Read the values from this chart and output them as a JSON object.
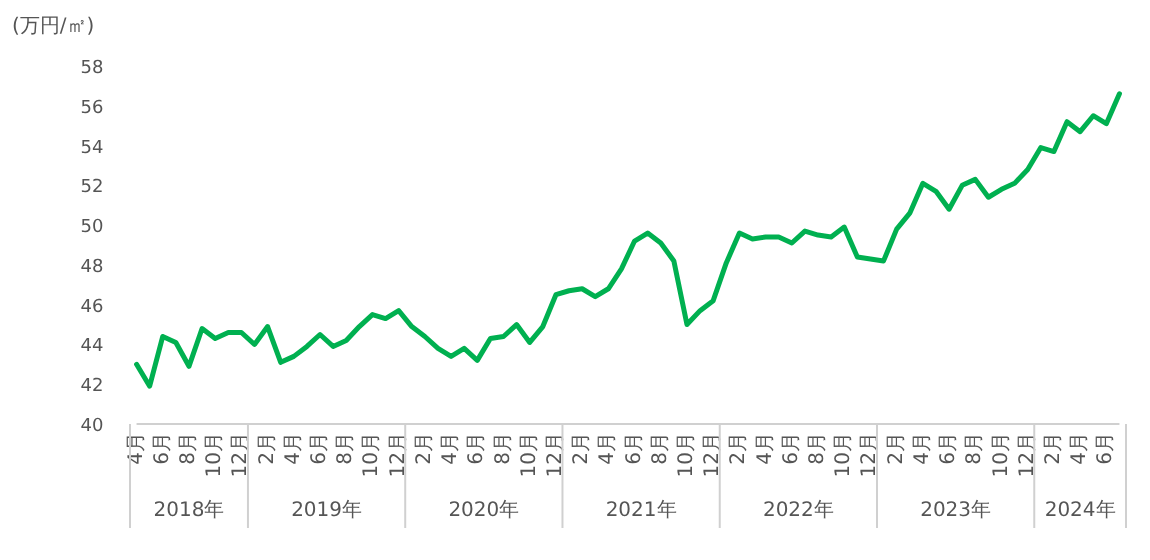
{
  "chart_data": {
    "type": "line",
    "ylabel": "(万円/㎡)",
    "x": [
      "2018-04",
      "2018-05",
      "2018-06",
      "2018-07",
      "2018-08",
      "2018-09",
      "2018-10",
      "2018-11",
      "2018-12",
      "2019-01",
      "2019-02",
      "2019-03",
      "2019-04",
      "2019-05",
      "2019-06",
      "2019-07",
      "2019-08",
      "2019-09",
      "2019-10",
      "2019-11",
      "2019-12",
      "2020-01",
      "2020-02",
      "2020-03",
      "2020-04",
      "2020-05",
      "2020-06",
      "2020-07",
      "2020-08",
      "2020-09",
      "2020-10",
      "2020-11",
      "2020-12",
      "2021-01",
      "2021-02",
      "2021-03",
      "2021-04",
      "2021-05",
      "2021-06",
      "2021-07",
      "2021-08",
      "2021-09",
      "2021-10",
      "2021-11",
      "2021-12",
      "2022-01",
      "2022-02",
      "2022-03",
      "2022-04",
      "2022-05",
      "2022-06",
      "2022-07",
      "2022-08",
      "2022-09",
      "2022-10",
      "2022-11",
      "2022-12",
      "2023-01",
      "2023-02",
      "2023-03",
      "2023-04",
      "2023-05",
      "2023-06",
      "2023-07",
      "2023-08",
      "2023-09",
      "2023-10",
      "2023-11",
      "2023-12",
      "2024-01",
      "2024-02",
      "2024-03",
      "2024-04",
      "2024-05",
      "2024-06",
      "2024-07"
    ],
    "series": [
      {
        "color": "#00b050",
        "values": [
          43.0,
          41.9,
          44.4,
          44.1,
          42.9,
          44.8,
          44.3,
          44.6,
          44.6,
          44.0,
          44.9,
          43.1,
          43.4,
          43.9,
          44.5,
          43.9,
          44.2,
          44.9,
          45.5,
          45.3,
          45.7,
          44.9,
          44.4,
          43.8,
          43.4,
          43.8,
          43.2,
          44.3,
          44.4,
          45.0,
          44.1,
          44.9,
          46.5,
          46.7,
          46.8,
          46.4,
          46.8,
          47.8,
          49.2,
          49.6,
          49.1,
          48.2,
          45.0,
          45.7,
          46.2,
          48.1,
          49.6,
          49.3,
          49.4,
          49.4,
          49.1,
          49.7,
          49.5,
          49.4,
          49.9,
          48.4,
          48.3,
          48.2,
          49.8,
          50.6,
          52.1,
          51.7,
          50.8,
          52.0,
          52.3,
          51.4,
          51.8,
          52.1,
          52.8,
          53.9,
          53.7,
          55.2,
          54.7,
          55.5,
          55.1,
          56.6
        ]
      }
    ],
    "xlim": [
      "2018-04",
      "2024-07"
    ],
    "xticks": [
      {
        "value": "2018-04",
        "label": "4月"
      },
      {
        "value": "2018-06",
        "label": "6月"
      },
      {
        "value": "2018-08",
        "label": "8月"
      },
      {
        "value": "2018-10",
        "label": "10月"
      },
      {
        "value": "2018-12",
        "label": "12月"
      },
      {
        "value": "2019-02",
        "label": "2月"
      },
      {
        "value": "2019-04",
        "label": "4月"
      },
      {
        "value": "2019-06",
        "label": "6月"
      },
      {
        "value": "2019-08",
        "label": "8月"
      },
      {
        "value": "2019-10",
        "label": "10月"
      },
      {
        "value": "2019-12",
        "label": "12月"
      },
      {
        "value": "2020-02",
        "label": "2月"
      },
      {
        "value": "2020-04",
        "label": "4月"
      },
      {
        "value": "2020-06",
        "label": "6月"
      },
      {
        "value": "2020-08",
        "label": "8月"
      },
      {
        "value": "2020-10",
        "label": "10月"
      },
      {
        "value": "2020-12",
        "label": "12月"
      },
      {
        "value": "2021-02",
        "label": "2月"
      },
      {
        "value": "2021-04",
        "label": "4月"
      },
      {
        "value": "2021-06",
        "label": "6月"
      },
      {
        "value": "2021-08",
        "label": "8月"
      },
      {
        "value": "2021-10",
        "label": "10月"
      },
      {
        "value": "2021-12",
        "label": "12月"
      },
      {
        "value": "2022-02",
        "label": "2月"
      },
      {
        "value": "2022-04",
        "label": "4月"
      },
      {
        "value": "2022-06",
        "label": "6月"
      },
      {
        "value": "2022-08",
        "label": "8月"
      },
      {
        "value": "2022-10",
        "label": "10月"
      },
      {
        "value": "2022-12",
        "label": "12月"
      },
      {
        "value": "2023-02",
        "label": "2月"
      },
      {
        "value": "2023-04",
        "label": "4月"
      },
      {
        "value": "2023-06",
        "label": "6月"
      },
      {
        "value": "2023-08",
        "label": "8月"
      },
      {
        "value": "2023-10",
        "label": "10月"
      },
      {
        "value": "2023-12",
        "label": "12月"
      },
      {
        "value": "2024-02",
        "label": "2月"
      },
      {
        "value": "2024-04",
        "label": "4月"
      },
      {
        "value": "2024-06",
        "label": "6月"
      }
    ],
    "annotations": [
      "2018年",
      "2019年",
      "2020年",
      "2021年",
      "2022年",
      "2023年",
      "2024年"
    ],
    "ylim": [
      40,
      58
    ],
    "yticks": [
      40,
      42,
      44,
      46,
      48,
      50,
      52,
      54,
      56,
      58
    ],
    "grid": false,
    "marker": "none",
    "line_style": "solid"
  }
}
